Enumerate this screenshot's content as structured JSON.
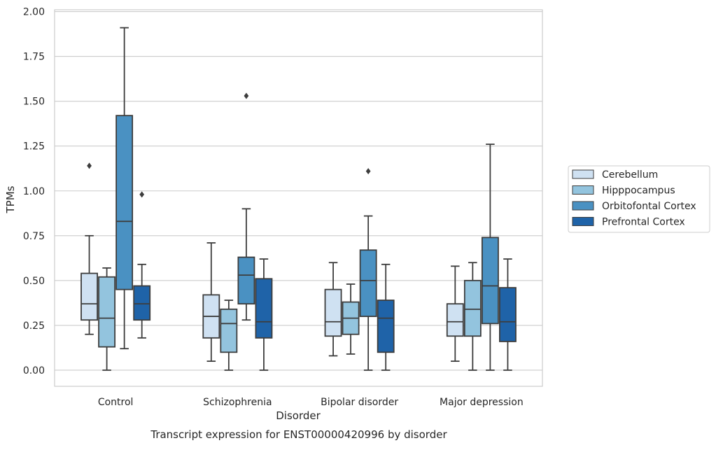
{
  "chart_data": {
    "type": "box",
    "xlabel": "Disorder",
    "ylabel": "TPMs",
    "caption": "Transcript expression for ENST00000420996 by disorder",
    "ylim": [
      -0.09,
      2.01
    ],
    "yticks": [
      "0.00",
      "0.25",
      "0.50",
      "0.75",
      "1.00",
      "1.25",
      "1.50",
      "1.75",
      "2.00"
    ],
    "grid": "horizontal",
    "legend_position": "right",
    "categories": [
      "Control",
      "Schizophrenia",
      "Bipolar disorder",
      "Major depression"
    ],
    "series": [
      {
        "name": "Cerebellum",
        "color": "#cfe1f2",
        "boxes": [
          {
            "whisker_low": 0.2,
            "q1": 0.28,
            "median": 0.37,
            "q3": 0.54,
            "whisker_high": 0.75,
            "outliers": [
              1.14
            ]
          },
          {
            "whisker_low": 0.05,
            "q1": 0.18,
            "median": 0.3,
            "q3": 0.42,
            "whisker_high": 0.71,
            "outliers": []
          },
          {
            "whisker_low": 0.08,
            "q1": 0.19,
            "median": 0.27,
            "q3": 0.45,
            "whisker_high": 0.6,
            "outliers": []
          },
          {
            "whisker_low": 0.05,
            "q1": 0.19,
            "median": 0.27,
            "q3": 0.37,
            "whisker_high": 0.58,
            "outliers": []
          }
        ]
      },
      {
        "name": "Hipppocampus",
        "color": "#93c4de",
        "boxes": [
          {
            "whisker_low": 0.0,
            "q1": 0.13,
            "median": 0.29,
            "q3": 0.52,
            "whisker_high": 0.57,
            "outliers": []
          },
          {
            "whisker_low": 0.0,
            "q1": 0.1,
            "median": 0.26,
            "q3": 0.34,
            "whisker_high": 0.39,
            "outliers": []
          },
          {
            "whisker_low": 0.09,
            "q1": 0.2,
            "median": 0.29,
            "q3": 0.38,
            "whisker_high": 0.48,
            "outliers": []
          },
          {
            "whisker_low": 0.0,
            "q1": 0.19,
            "median": 0.34,
            "q3": 0.5,
            "whisker_high": 0.6,
            "outliers": []
          }
        ]
      },
      {
        "name": "Orbitofontal Cortex",
        "color": "#4a91c2",
        "boxes": [
          {
            "whisker_low": 0.12,
            "q1": 0.45,
            "median": 0.83,
            "q3": 1.42,
            "whisker_high": 1.91,
            "outliers": []
          },
          {
            "whisker_low": 0.28,
            "q1": 0.37,
            "median": 0.53,
            "q3": 0.63,
            "whisker_high": 0.9,
            "outliers": [
              1.53
            ]
          },
          {
            "whisker_low": 0.0,
            "q1": 0.3,
            "median": 0.5,
            "q3": 0.67,
            "whisker_high": 0.86,
            "outliers": [
              1.11
            ]
          },
          {
            "whisker_low": 0.0,
            "q1": 0.26,
            "median": 0.47,
            "q3": 0.74,
            "whisker_high": 1.26,
            "outliers": []
          }
        ]
      },
      {
        "name": "Prefrontal Cortex",
        "color": "#1f63a8",
        "boxes": [
          {
            "whisker_low": 0.18,
            "q1": 0.28,
            "median": 0.37,
            "q3": 0.47,
            "whisker_high": 0.59,
            "outliers": [
              0.98
            ]
          },
          {
            "whisker_low": 0.0,
            "q1": 0.18,
            "median": 0.27,
            "q3": 0.51,
            "whisker_high": 0.62,
            "outliers": []
          },
          {
            "whisker_low": 0.0,
            "q1": 0.1,
            "median": 0.29,
            "q3": 0.39,
            "whisker_high": 0.59,
            "outliers": []
          },
          {
            "whisker_low": 0.0,
            "q1": 0.16,
            "median": 0.27,
            "q3": 0.46,
            "whisker_high": 0.62,
            "outliers": []
          }
        ]
      }
    ]
  }
}
